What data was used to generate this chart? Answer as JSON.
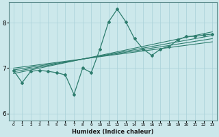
{
  "xlabel": "Humidex (Indice chaleur)",
  "ylabel": "",
  "bg_color": "#cce8eb",
  "line_color": "#2e7d6e",
  "grid_color": "#a8d0d8",
  "x_ticks": [
    0,
    1,
    2,
    3,
    4,
    5,
    6,
    7,
    8,
    9,
    10,
    11,
    12,
    13,
    14,
    15,
    16,
    17,
    18,
    19,
    20,
    21,
    22,
    23
  ],
  "ylim": [
    5.85,
    8.45
  ],
  "xlim": [
    -0.5,
    23.5
  ],
  "yticks": [
    6,
    7,
    8
  ],
  "main_line_x": [
    0,
    1,
    2,
    3,
    4,
    5,
    6,
    7,
    8,
    9,
    10,
    11,
    12,
    13,
    14,
    15,
    16,
    17,
    18,
    19,
    20,
    21,
    22,
    23
  ],
  "main_line_y": [
    6.95,
    6.68,
    6.93,
    6.95,
    6.93,
    6.9,
    6.85,
    6.42,
    7.0,
    6.9,
    7.42,
    8.02,
    8.3,
    8.02,
    7.65,
    7.42,
    7.28,
    7.42,
    7.48,
    7.62,
    7.7,
    7.7,
    7.73,
    7.75
  ],
  "reg_lines": [
    {
      "x": [
        0,
        23
      ],
      "y": [
        6.88,
        7.8
      ]
    },
    {
      "x": [
        0,
        23
      ],
      "y": [
        6.92,
        7.72
      ]
    },
    {
      "x": [
        0,
        23
      ],
      "y": [
        6.96,
        7.65
      ]
    },
    {
      "x": [
        0,
        23
      ],
      "y": [
        7.0,
        7.58
      ]
    }
  ]
}
